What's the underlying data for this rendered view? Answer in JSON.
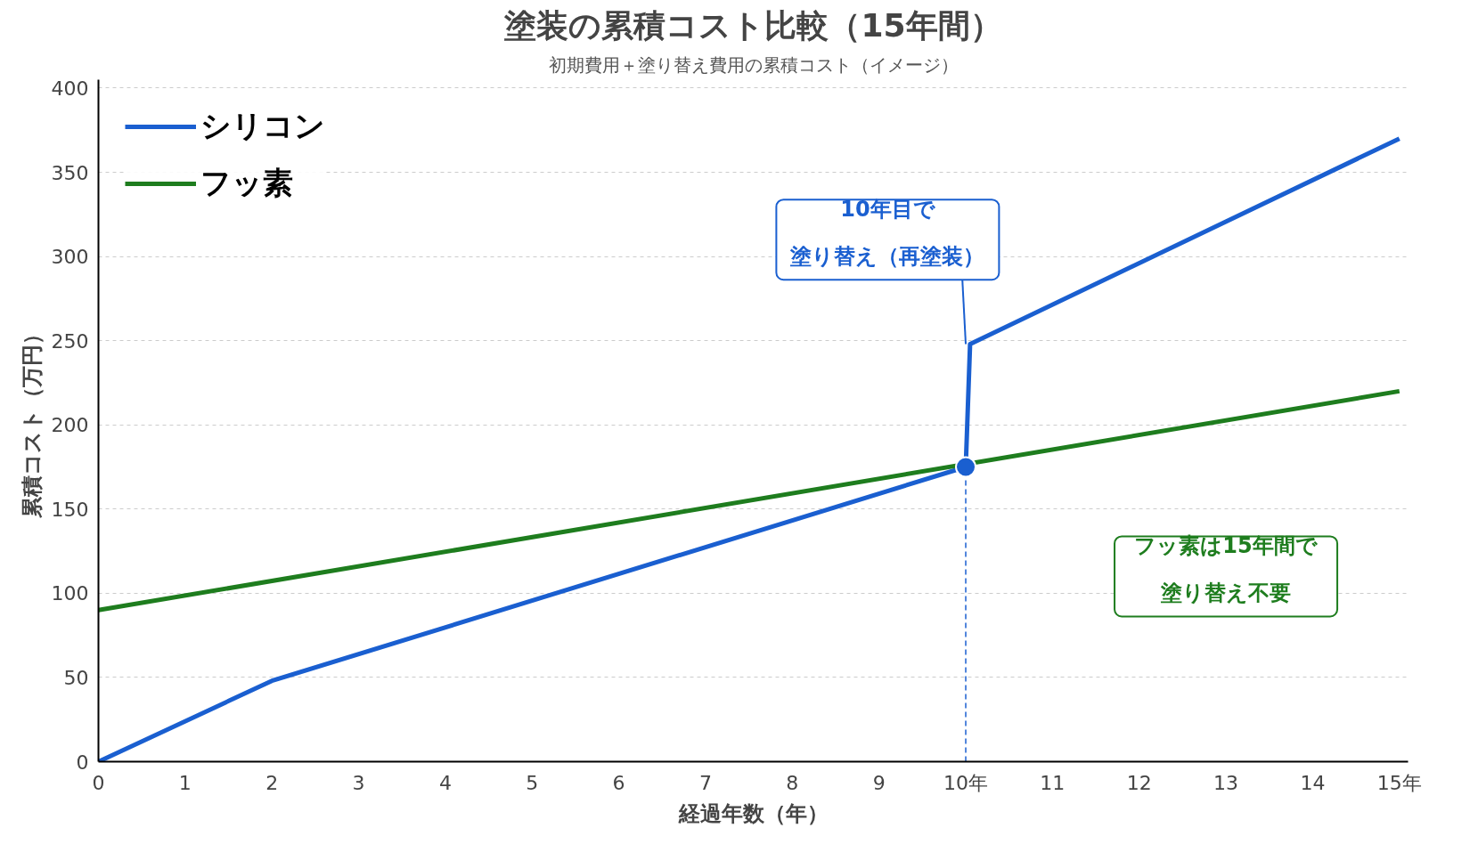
{
  "chart_data": {
    "type": "line",
    "title": "塗装の累積コスト比較（15年間）",
    "subtitle": "初期費用＋塗り替え費用の累積コスト（イメージ）",
    "xlabel": "経過年数（年）",
    "ylabel": "累積コスト（万円）",
    "series": [
      {
        "name": "シリコン",
        "color": "#1a5fd0",
        "x": [
          0,
          2,
          10,
          10.05,
          15
        ],
        "values": [
          0,
          48,
          175,
          248,
          370
        ]
      },
      {
        "name": "フッ素",
        "color": "#1e7d1e",
        "x": [
          0,
          15
        ],
        "values": [
          90,
          220
        ]
      },
      {
        "type": "scatter",
        "color": "#1a5fd0",
        "x": [
          10
        ],
        "values": [
          175
        ]
      }
    ],
    "xlim": [
      0,
      15.1
    ],
    "ylim": [
      0,
      405
    ],
    "xticks": [
      0,
      1,
      2,
      3,
      4,
      5,
      6,
      7,
      8,
      9,
      {
        "value": 10,
        "label": "10年"
      },
      11,
      12,
      13,
      14,
      {
        "value": 15,
        "label": "15年"
      }
    ],
    "yticks": [
      0,
      50,
      100,
      150,
      200,
      250,
      300,
      350,
      400
    ],
    "ref_lines": [
      {
        "axis": "x",
        "value": 10,
        "color": "#1a5fd0",
        "line_style": "dashed"
      }
    ],
    "annotations": [
      "10年目で",
      {
        "text": "塗り替え（再塗装）",
        "x": 10,
        "y": 248
      },
      "フッ素は15年間で",
      "塗り替え不要"
    ],
    "grid": "y",
    "legend": "top left"
  }
}
